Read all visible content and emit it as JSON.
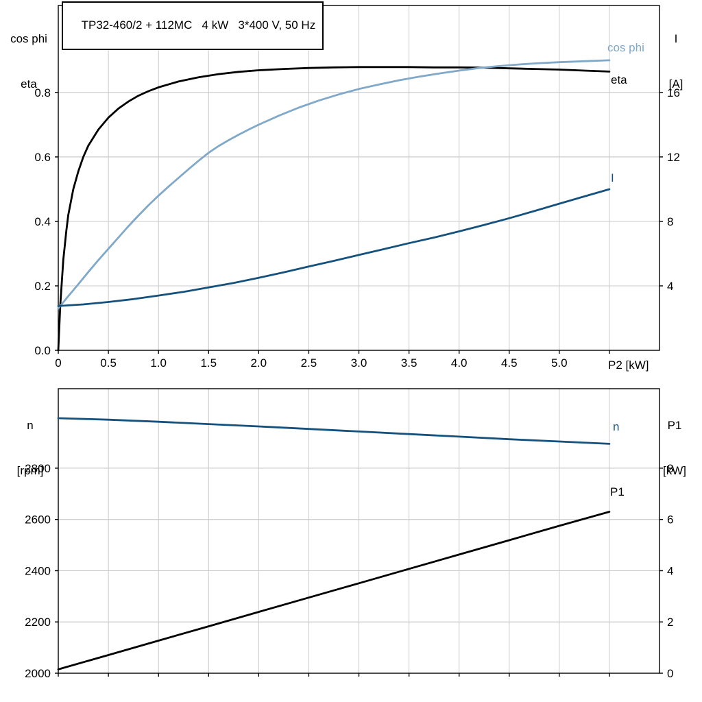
{
  "title": "TP32-460/2 + 112MC   4 kW   3*400 V, 50 Hz",
  "axis_labels": {
    "top_left_line1": "cos phi",
    "top_left_line2": "eta",
    "top_right_line1": "I",
    "top_right_line2": "[A]",
    "bottom_left_line1": "n",
    "bottom_left_line2": "[rpm]",
    "bottom_right_line1": "P1",
    "bottom_right_line2": "[kW]"
  },
  "colors": {
    "black": "#000000",
    "dark_blue": "#14527D",
    "light_blue": "#7FA8C9",
    "grid": "#c9c9c9",
    "frame": "#000000",
    "background": "#ffffff"
  },
  "chart_data": [
    {
      "type": "line",
      "title": "TP32-460/2 + 112MC   4 kW   3*400 V, 50 Hz",
      "xlabel": "P2 [kW]",
      "ylabel_left": "cos phi / eta",
      "ylabel_right": "I [A]",
      "grid": true,
      "legend_position": "curve-end-labels",
      "xlim": [
        0,
        6
      ],
      "x_ticks": [
        0,
        0.5,
        1,
        1.5,
        2,
        2.5,
        3,
        3.5,
        4,
        4.5,
        5,
        5.5
      ],
      "x_tick_labels": [
        "0",
        "0.5",
        "1.0",
        "1.5",
        "2.0",
        "2.5",
        "3.0",
        "3.5",
        "4.0",
        "4.5",
        "5.0",
        ""
      ],
      "ylim_left": [
        0,
        1.07
      ],
      "y_ticks_left": [
        0,
        0.2,
        0.4,
        0.6,
        0.8
      ],
      "y_tick_labels_left": [
        "0.0",
        "0.2",
        "0.4",
        "0.6",
        "0.8"
      ],
      "ylim_right": [
        0,
        21.4
      ],
      "y_ticks_right": [
        4,
        8,
        12,
        16
      ],
      "y_tick_labels_right": [
        "4",
        "8",
        "12",
        "16"
      ],
      "series": [
        {
          "name": "eta",
          "axis": "left",
          "color": "#000000",
          "x": [
            0,
            0.02,
            0.05,
            0.08,
            0.1,
            0.15,
            0.2,
            0.25,
            0.3,
            0.4,
            0.5,
            0.6,
            0.7,
            0.8,
            0.9,
            1.0,
            1.2,
            1.4,
            1.6,
            1.8,
            2.0,
            2.25,
            2.5,
            2.75,
            3.0,
            3.25,
            3.5,
            3.75,
            4.0,
            4.25,
            4.5,
            4.75,
            5.0,
            5.25,
            5.5
          ],
          "values": [
            0,
            0.14,
            0.28,
            0.37,
            0.42,
            0.5,
            0.555,
            0.6,
            0.635,
            0.685,
            0.722,
            0.75,
            0.772,
            0.79,
            0.804,
            0.816,
            0.834,
            0.847,
            0.857,
            0.864,
            0.869,
            0.873,
            0.876,
            0.878,
            0.879,
            0.879,
            0.879,
            0.878,
            0.878,
            0.877,
            0.875,
            0.873,
            0.871,
            0.868,
            0.865
          ]
        },
        {
          "name": "cos phi",
          "axis": "left",
          "color": "#7FA8C9",
          "x": [
            0,
            0.1,
            0.2,
            0.3,
            0.4,
            0.5,
            0.6,
            0.7,
            0.8,
            0.9,
            1.0,
            1.1,
            1.2,
            1.3,
            1.4,
            1.5,
            1.6,
            1.7,
            1.8,
            1.9,
            2.0,
            2.2,
            2.4,
            2.6,
            2.8,
            3.0,
            3.2,
            3.4,
            3.6,
            3.8,
            4.0,
            4.2,
            4.4,
            4.6,
            4.8,
            5.0,
            5.25,
            5.5
          ],
          "values": [
            0.13,
            0.168,
            0.205,
            0.243,
            0.28,
            0.315,
            0.35,
            0.385,
            0.418,
            0.45,
            0.48,
            0.508,
            0.535,
            0.562,
            0.588,
            0.613,
            0.634,
            0.652,
            0.669,
            0.685,
            0.7,
            0.728,
            0.753,
            0.775,
            0.794,
            0.811,
            0.825,
            0.838,
            0.849,
            0.859,
            0.868,
            0.876,
            0.882,
            0.887,
            0.891,
            0.894,
            0.897,
            0.9
          ]
        },
        {
          "name": "I",
          "axis": "right",
          "color": "#14527D",
          "x": [
            0,
            0.25,
            0.5,
            0.75,
            1.0,
            1.25,
            1.5,
            1.75,
            2.0,
            2.25,
            2.5,
            2.75,
            3.0,
            3.25,
            3.5,
            3.75,
            4.0,
            4.25,
            4.5,
            4.75,
            5.0,
            5.25,
            5.5
          ],
          "values": [
            2.75,
            2.85,
            3.0,
            3.18,
            3.4,
            3.63,
            3.9,
            4.18,
            4.5,
            4.84,
            5.2,
            5.55,
            5.92,
            6.28,
            6.65,
            7.0,
            7.38,
            7.78,
            8.2,
            8.64,
            9.1,
            9.55,
            10.0
          ]
        }
      ]
    },
    {
      "type": "line",
      "title": "",
      "xlabel": "",
      "ylabel_left": "n [rpm]",
      "ylabel_right": "P1 [kW]",
      "grid": true,
      "legend_position": "curve-end-labels",
      "xlim": [
        0,
        6
      ],
      "x_ticks": [
        0,
        0.5,
        1,
        1.5,
        2,
        2.5,
        3,
        3.5,
        4,
        4.5,
        5,
        5.5
      ],
      "x_tick_labels": [],
      "ylim_left": [
        2000,
        3110
      ],
      "y_ticks_left": [
        2000,
        2200,
        2400,
        2600,
        2800
      ],
      "y_tick_labels_left": [
        "2000",
        "2200",
        "2400",
        "2600",
        "2800"
      ],
      "ylim_right": [
        0,
        11.1
      ],
      "y_ticks_right": [
        0,
        2,
        4,
        6,
        8
      ],
      "y_tick_labels_right": [
        "0",
        "2",
        "4",
        "6",
        "8"
      ],
      "series": [
        {
          "name": "n",
          "axis": "left",
          "color": "#14527D",
          "x": [
            0,
            0.5,
            1,
            1.5,
            2,
            2.5,
            3,
            3.5,
            4,
            4.5,
            5,
            5.5
          ],
          "values": [
            2995,
            2989,
            2981,
            2972,
            2963,
            2953,
            2943,
            2933,
            2923,
            2913,
            2904,
            2895
          ]
        },
        {
          "name": "P1",
          "axis": "right",
          "color": "#000000",
          "x": [
            0,
            0.5,
            1,
            1.5,
            2,
            2.5,
            3,
            3.5,
            4,
            4.5,
            5,
            5.5
          ],
          "values": [
            0.15,
            0.71,
            1.27,
            1.83,
            2.39,
            2.95,
            3.51,
            4.07,
            4.63,
            5.19,
            5.75,
            6.3
          ]
        }
      ]
    }
  ]
}
